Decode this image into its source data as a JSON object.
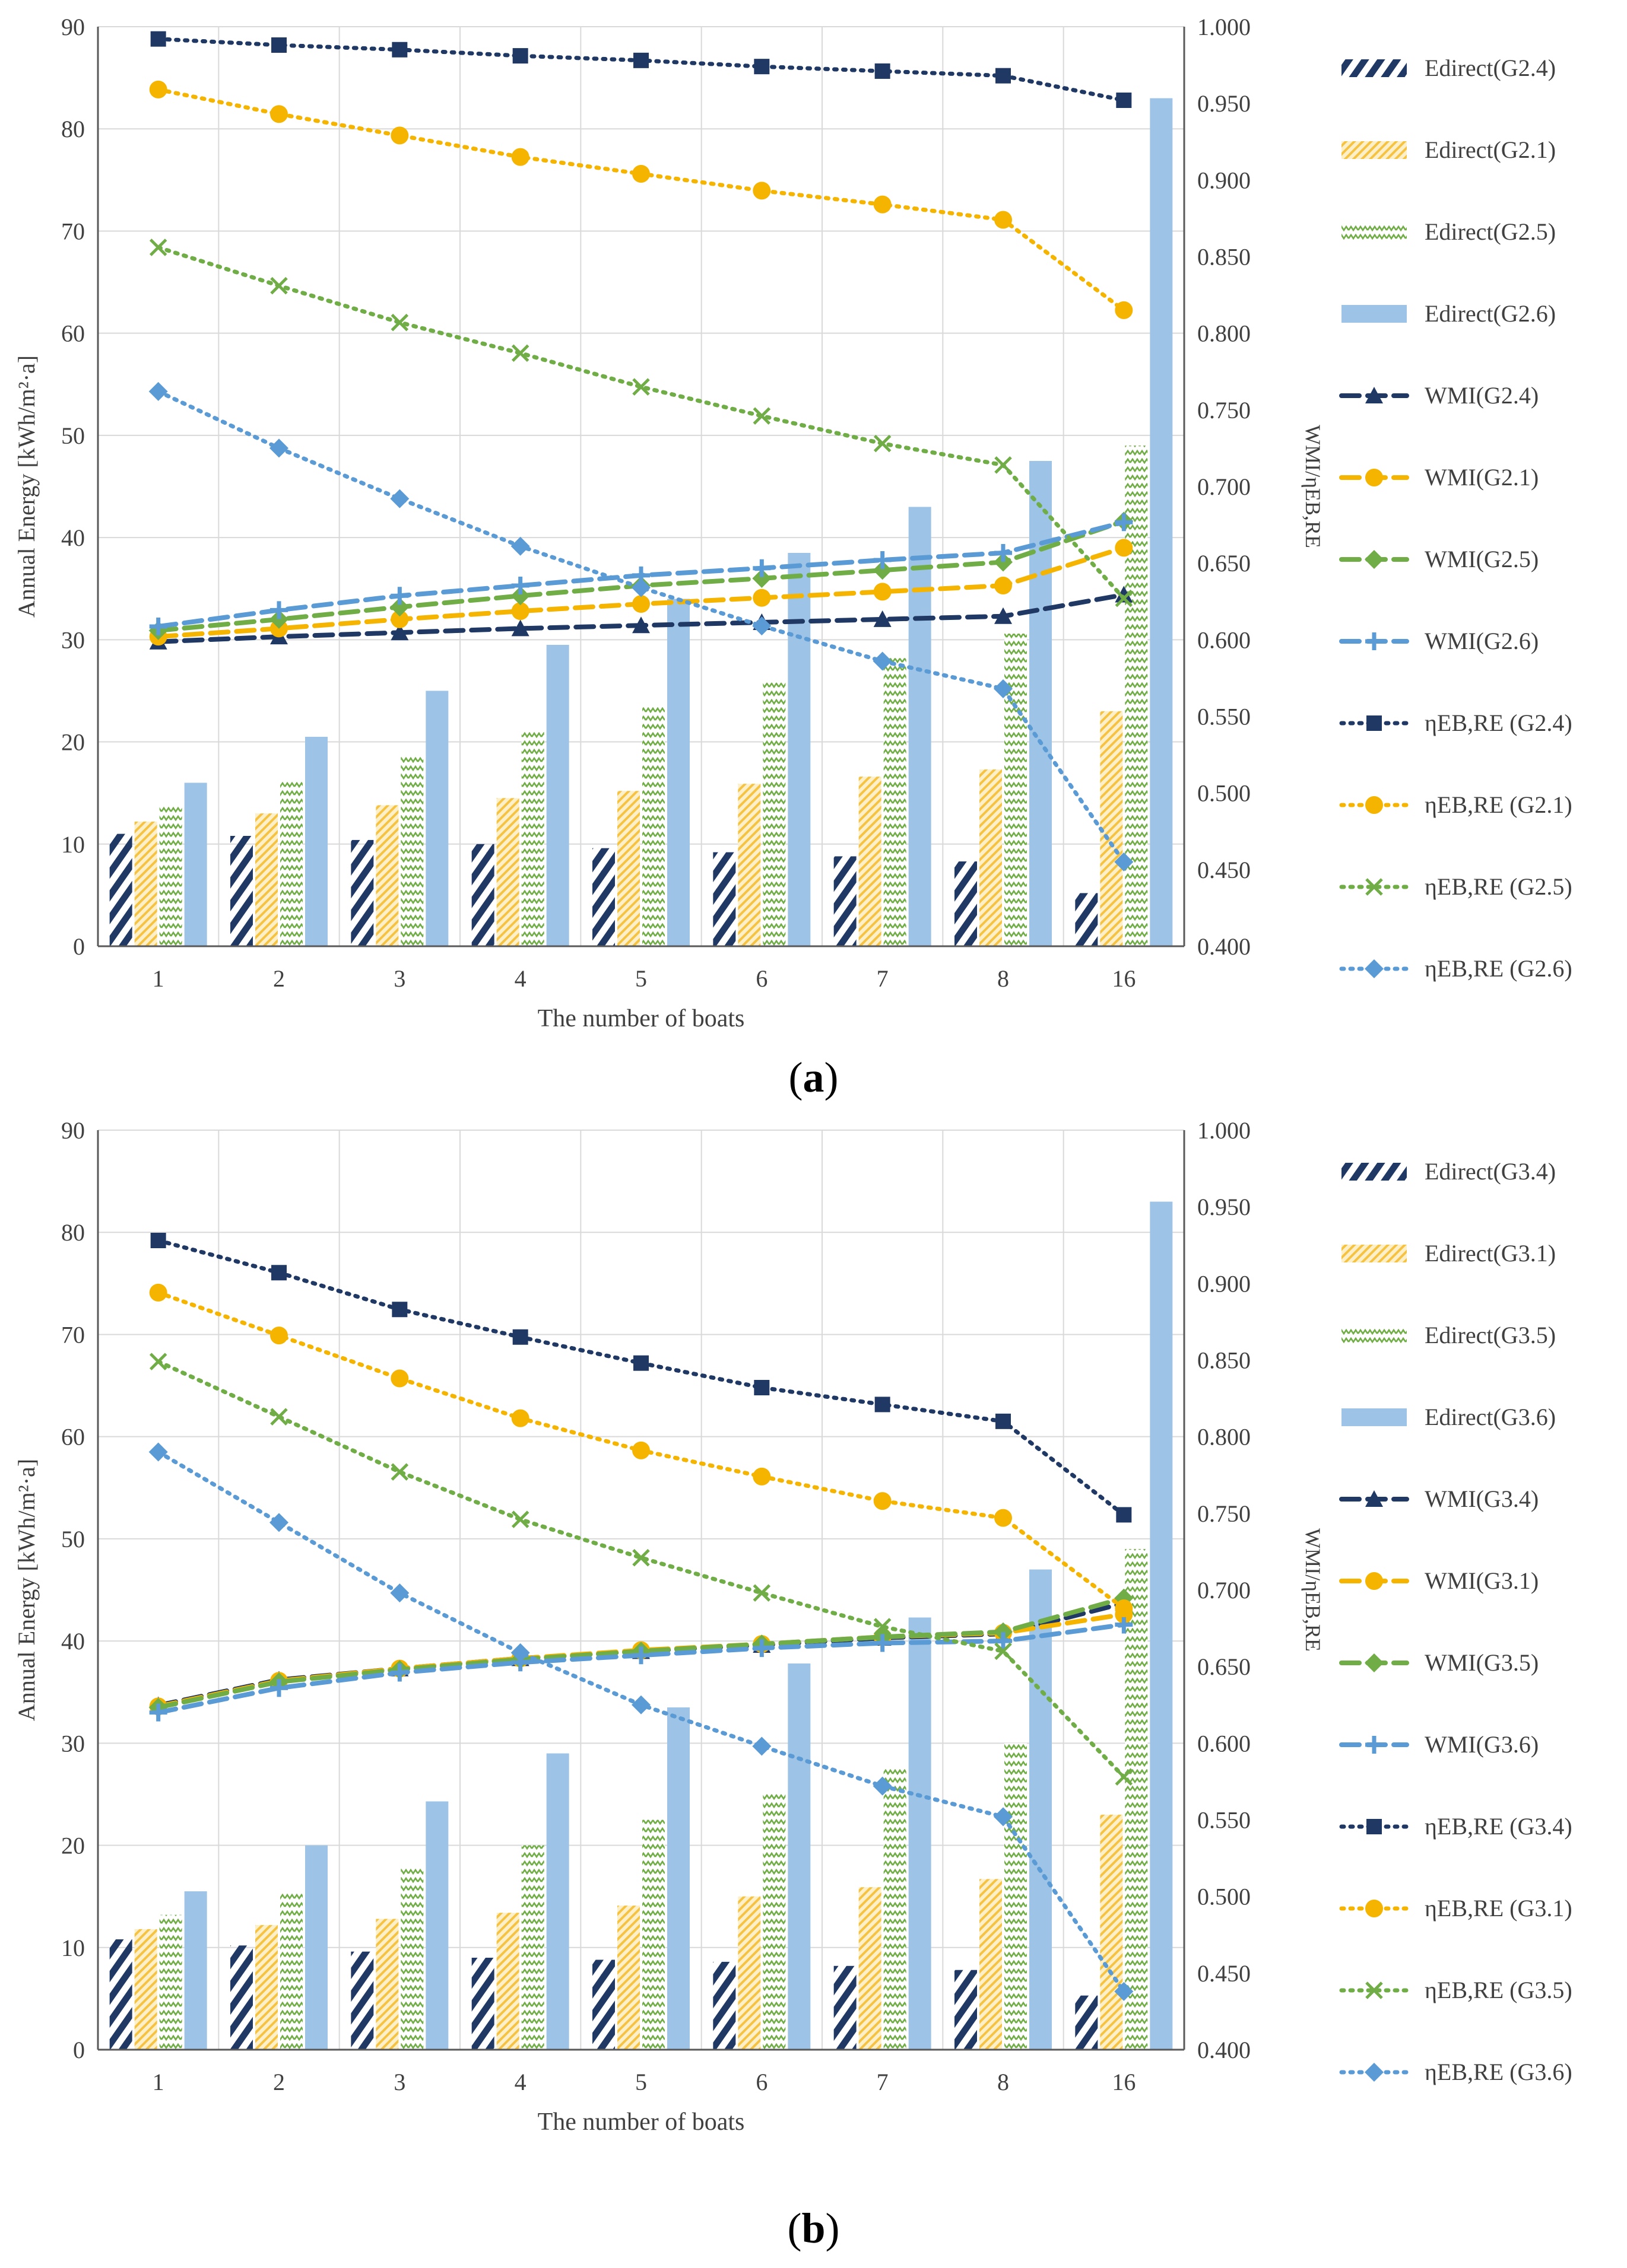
{
  "chart_data": [
    {
      "type": "bar+line",
      "panel_label": "a",
      "xlabel": "The number of boats",
      "ylabel_left": "Annual Energy [kWh/m²·a]",
      "ylabel_right": "WMI/ηEB,RE",
      "categories": [
        "1",
        "2",
        "3",
        "4",
        "5",
        "6",
        "7",
        "8",
        "16"
      ],
      "ylim_left": [
        0,
        90
      ],
      "ylim_right": [
        0.4,
        1.0
      ],
      "left_ticks": [
        "0",
        "10",
        "20",
        "30",
        "40",
        "50",
        "60",
        "70",
        "80",
        "90"
      ],
      "right_ticks": [
        "0.400",
        "0.450",
        "0.500",
        "0.550",
        "0.600",
        "0.650",
        "0.700",
        "0.750",
        "0.800",
        "0.850",
        "0.900",
        "0.950",
        "1.000"
      ],
      "bars": [
        {
          "name": "Edirect(G2.4)",
          "color": "#1f3864",
          "pattern": "hatch",
          "values": [
            11,
            10.8,
            10.4,
            10,
            9.6,
            9.2,
            8.8,
            8.3,
            5.2
          ]
        },
        {
          "name": "Edirect(G2.1)",
          "color": "#f5c242",
          "pattern": "dots",
          "values": [
            12.2,
            13,
            13.8,
            14.5,
            15.2,
            15.9,
            16.6,
            17.3,
            23
          ]
        },
        {
          "name": "Edirect(G2.5)",
          "color": "#70ad47",
          "pattern": "zigzag",
          "values": [
            13.8,
            16.2,
            18.6,
            21,
            23.4,
            25.8,
            28.2,
            30.6,
            49
          ]
        },
        {
          "name": "Edirect(G2.6)",
          "color": "#9dc3e6",
          "pattern": "solid",
          "values": [
            16,
            20.5,
            25,
            29.5,
            34,
            38.5,
            43,
            47.5,
            83
          ]
        }
      ],
      "lines": [
        {
          "name": "WMI(G2.4)",
          "color": "#1f3864",
          "dash": "long",
          "marker": "triangle",
          "axis": "left",
          "values": [
            29.8,
            30.3,
            30.7,
            31.1,
            31.4,
            31.7,
            32,
            32.3,
            34.4
          ]
        },
        {
          "name": "WMI(G2.1)",
          "color": "#f5b400",
          "dash": "long",
          "marker": "circle",
          "axis": "left",
          "values": [
            30.3,
            31.1,
            32,
            32.8,
            33.5,
            34.1,
            34.7,
            35.3,
            39
          ]
        },
        {
          "name": "WMI(G2.5)",
          "color": "#70ad47",
          "dash": "long",
          "marker": "diamond",
          "axis": "left",
          "values": [
            30.9,
            32,
            33.2,
            34.3,
            35.3,
            36,
            36.8,
            37.6,
            41.6
          ]
        },
        {
          "name": "WMI(G2.6)",
          "color": "#5b9bd5",
          "dash": "long",
          "marker": "plus",
          "axis": "left",
          "values": [
            31.3,
            32.9,
            34.3,
            35.3,
            36.3,
            37,
            37.8,
            38.5,
            41.5
          ]
        },
        {
          "name": "ηEB,RE (G2.4)",
          "color": "#1f3864",
          "dash": "dot",
          "marker": "square",
          "axis": "right",
          "values": [
            0.992,
            0.988,
            0.985,
            0.981,
            0.978,
            0.974,
            0.971,
            0.968,
            0.952
          ]
        },
        {
          "name": "ηEB,RE (G2.1)",
          "color": "#f5b400",
          "dash": "dot",
          "marker": "circle",
          "axis": "right",
          "values": [
            0.959,
            0.943,
            0.929,
            0.915,
            0.904,
            0.893,
            0.884,
            0.874,
            0.815
          ]
        },
        {
          "name": "ηEB,RE (G2.5)",
          "color": "#70ad47",
          "dash": "dot",
          "marker": "x",
          "axis": "right",
          "values": [
            0.856,
            0.831,
            0.807,
            0.787,
            0.765,
            0.746,
            0.728,
            0.714,
            0.627
          ]
        },
        {
          "name": "ηEB,RE (G2.6)",
          "color": "#5b9bd5",
          "dash": "dot",
          "marker": "diamond",
          "axis": "right",
          "values": [
            0.762,
            0.725,
            0.692,
            0.661,
            0.634,
            0.609,
            0.586,
            0.568,
            0.455
          ]
        }
      ]
    },
    {
      "type": "bar+line",
      "panel_label": "b",
      "xlabel": "The number of boats",
      "ylabel_left": "Annual Energy [kWh/m²·a]",
      "ylabel_right": "WMI/ηEB,RE",
      "categories": [
        "1",
        "2",
        "3",
        "4",
        "5",
        "6",
        "7",
        "8",
        "16"
      ],
      "ylim_left": [
        0,
        90
      ],
      "ylim_right": [
        0.4,
        1.0
      ],
      "left_ticks": [
        "0",
        "10",
        "20",
        "30",
        "40",
        "50",
        "60",
        "70",
        "80",
        "90"
      ],
      "right_ticks": [
        "0.400",
        "0.450",
        "0.500",
        "0.550",
        "0.600",
        "0.650",
        "0.700",
        "0.750",
        "0.800",
        "0.850",
        "0.900",
        "0.950",
        "1.000"
      ],
      "bars": [
        {
          "name": "Edirect(G3.4)",
          "color": "#1f3864",
          "pattern": "hatch",
          "values": [
            10.8,
            10.2,
            9.6,
            9,
            8.8,
            8.6,
            8.2,
            7.8,
            5.3
          ]
        },
        {
          "name": "Edirect(G3.1)",
          "color": "#f5c242",
          "pattern": "dots",
          "values": [
            11.8,
            12.2,
            12.8,
            13.4,
            14.1,
            15,
            15.9,
            16.7,
            23
          ]
        },
        {
          "name": "Edirect(G3.5)",
          "color": "#70ad47",
          "pattern": "zigzag",
          "values": [
            13.2,
            15.5,
            17.8,
            20,
            22.5,
            25,
            27.5,
            30,
            49
          ]
        },
        {
          "name": "Edirect(G3.6)",
          "color": "#9dc3e6",
          "pattern": "solid",
          "values": [
            15.5,
            20,
            24.3,
            29,
            33.5,
            37.8,
            42.3,
            47,
            83
          ]
        }
      ],
      "lines": [
        {
          "name": "WMI(G3.4)",
          "color": "#1f3864",
          "dash": "long",
          "marker": "triangle",
          "axis": "left",
          "values": [
            33.7,
            36.2,
            37.3,
            38.3,
            39,
            39.6,
            40.3,
            40.7,
            43.7
          ]
        },
        {
          "name": "WMI(G3.1)",
          "color": "#f5b400",
          "dash": "long",
          "marker": "circle",
          "axis": "left",
          "values": [
            33.6,
            36.1,
            37.3,
            38.3,
            39.1,
            39.7,
            40.4,
            40.8,
            42.6
          ]
        },
        {
          "name": "WMI(G3.5)",
          "color": "#70ad47",
          "dash": "long",
          "marker": "diamond",
          "axis": "left",
          "values": [
            33.5,
            36,
            37.2,
            38.2,
            39,
            39.7,
            40.4,
            40.9,
            44.2
          ]
        },
        {
          "name": "WMI(G3.6)",
          "color": "#5b9bd5",
          "dash": "long",
          "marker": "plus",
          "axis": "left",
          "values": [
            33,
            35.4,
            36.9,
            37.9,
            38.6,
            39.3,
            39.8,
            40,
            41.6
          ]
        },
        {
          "name": "ηEB,RE (G3.4)",
          "color": "#1f3864",
          "dash": "dot",
          "marker": "square",
          "axis": "right",
          "values": [
            0.928,
            0.907,
            0.883,
            0.865,
            0.848,
            0.832,
            0.821,
            0.81,
            0.749
          ]
        },
        {
          "name": "ηEB,RE (G3.1)",
          "color": "#f5b400",
          "dash": "dot",
          "marker": "circle",
          "axis": "right",
          "values": [
            0.894,
            0.866,
            0.838,
            0.812,
            0.791,
            0.774,
            0.758,
            0.747,
            0.688
          ]
        },
        {
          "name": "ηEB,RE (G3.5)",
          "color": "#70ad47",
          "dash": "dot",
          "marker": "x",
          "axis": "right",
          "values": [
            0.849,
            0.813,
            0.777,
            0.746,
            0.721,
            0.698,
            0.676,
            0.66,
            0.578
          ]
        },
        {
          "name": "ηEB,RE (G3.6)",
          "color": "#5b9bd5",
          "dash": "dot",
          "marker": "diamond",
          "axis": "right",
          "values": [
            0.79,
            0.744,
            0.698,
            0.659,
            0.625,
            0.598,
            0.572,
            0.552,
            0.438
          ]
        }
      ]
    }
  ]
}
